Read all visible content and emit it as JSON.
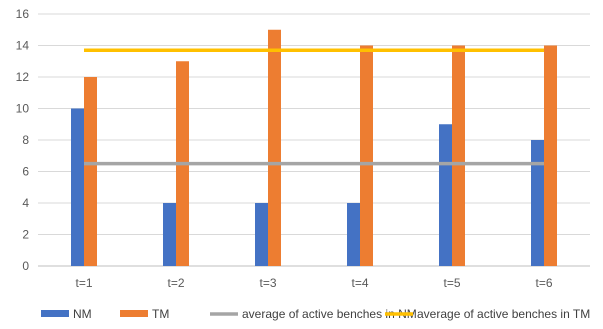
{
  "chart_data": {
    "type": "bar",
    "categories": [
      "t=1",
      "t=2",
      "t=3",
      "t=4",
      "t=5",
      "t=6"
    ],
    "series": [
      {
        "name": "NM",
        "values": [
          10,
          4,
          4,
          4,
          9,
          8
        ],
        "color": "#4472C4"
      },
      {
        "name": "TM",
        "values": [
          12,
          13,
          15,
          14,
          14,
          14
        ],
        "color": "#ED7D31"
      }
    ],
    "reference_lines": [
      {
        "name": "average of active benches in NM",
        "value": 6.5,
        "color": "#A5A5A5"
      },
      {
        "name": "average of active benches in TM",
        "value": 13.7,
        "color": "#FFC000"
      }
    ],
    "ylim": [
      0,
      16
    ],
    "yticks": [
      0,
      2,
      4,
      6,
      8,
      10,
      12,
      14,
      16
    ],
    "grid": true,
    "legend_position": "bottom"
  }
}
